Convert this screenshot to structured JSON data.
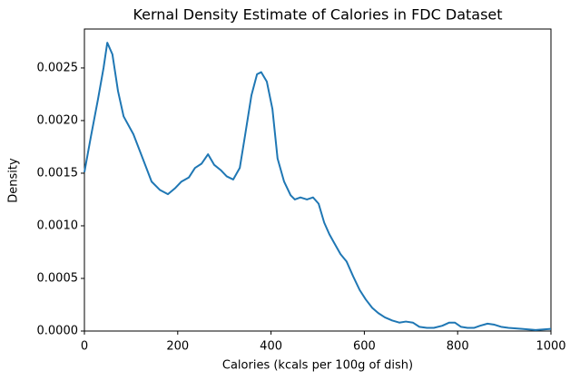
{
  "chart_data": {
    "type": "line",
    "title": "Kernal Density Estimate of Calories in FDC Dataset",
    "x_label": "Calories (kcals per 100g of dish)",
    "y_label": "Density",
    "x": [
      0,
      14,
      29,
      41,
      49,
      60,
      72,
      84,
      105,
      125,
      144,
      162,
      179,
      195,
      208,
      224,
      237,
      251,
      265,
      278,
      292,
      305,
      319,
      333,
      344,
      358,
      370,
      379,
      391,
      403,
      414,
      428,
      442,
      451,
      463,
      477,
      490,
      502,
      514,
      525,
      535,
      549,
      562,
      576,
      590,
      603,
      617,
      630,
      644,
      660,
      675,
      689,
      704,
      718,
      734,
      749,
      767,
      782,
      794,
      807,
      821,
      835,
      848,
      864,
      879,
      893,
      909,
      938,
      967,
      1000
    ],
    "series": [
      {
        "color": "#1f77b4",
        "values": [
          0.00151,
          0.00185,
          0.0022,
          0.0025,
          0.00274,
          0.00263,
          0.00228,
          0.00204,
          0.00187,
          0.00164,
          0.00142,
          0.00134,
          0.0013,
          0.00136,
          0.00142,
          0.00146,
          0.00155,
          0.00159,
          0.00168,
          0.00158,
          0.00153,
          0.00147,
          0.00144,
          0.00155,
          0.00185,
          0.00224,
          0.00244,
          0.00246,
          0.00237,
          0.00211,
          0.00164,
          0.00142,
          0.00129,
          0.00125,
          0.00127,
          0.00125,
          0.00127,
          0.00121,
          0.00103,
          0.00092,
          0.00084,
          0.00073,
          0.00066,
          0.00052,
          0.00039,
          0.0003,
          0.00022,
          0.00017,
          0.00013,
          0.0001,
          8e-05,
          9e-05,
          8e-05,
          4e-05,
          3e-05,
          3e-05,
          5e-05,
          8e-05,
          8e-05,
          4e-05,
          3e-05,
          3e-05,
          5e-05,
          7e-05,
          6e-05,
          4e-05,
          3e-05,
          2e-05,
          1e-05,
          2e-05
        ]
      }
    ],
    "xlim": [
      0,
      1000
    ],
    "xticks": [
      0,
      200,
      400,
      600,
      800,
      1000
    ],
    "ylim": [
      0,
      0.00287
    ],
    "yticks": [
      {
        "value": 0,
        "label": "0.0000"
      },
      {
        "value": 0.0005,
        "label": "0.0005"
      },
      {
        "value": 0.001,
        "label": "0.0010"
      },
      {
        "value": 0.0015,
        "label": "0.0015"
      },
      {
        "value": 0.002,
        "label": "0.0020"
      },
      {
        "value": 0.0025,
        "label": "0.0025"
      }
    ]
  }
}
